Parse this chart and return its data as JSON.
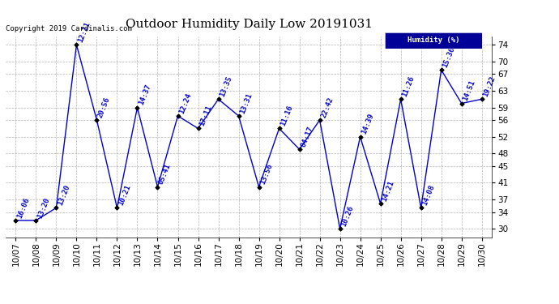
{
  "title": "Outdoor Humidity Daily Low 20191031",
  "dates": [
    "10/07",
    "10/08",
    "10/09",
    "10/10",
    "10/11",
    "10/12",
    "10/13",
    "10/14",
    "10/15",
    "10/16",
    "10/17",
    "10/18",
    "10/19",
    "10/20",
    "10/21",
    "10/22",
    "10/23",
    "10/24",
    "10/25",
    "10/26",
    "10/27",
    "10/28",
    "10/29",
    "10/30"
  ],
  "values": [
    32,
    32,
    35,
    74,
    56,
    35,
    59,
    40,
    57,
    54,
    61,
    57,
    40,
    54,
    49,
    56,
    30,
    52,
    36,
    61,
    35,
    68,
    60,
    61
  ],
  "labels": [
    "16:06",
    "13:20",
    "13:20",
    "12:11",
    "20:56",
    "10:21",
    "14:37",
    "05:41",
    "12:24",
    "17:11",
    "13:35",
    "13:31",
    "13:56",
    "11:16",
    "04:17",
    "22:42",
    "10:26",
    "14:39",
    "14:21",
    "11:26",
    "14:08",
    "15:36",
    "14:51",
    "19:22"
  ],
  "line_color": "#0000CC",
  "marker_color": "#000000",
  "label_color": "#0000CC",
  "bg_color": "#ffffff",
  "grid_color": "#b0b0b0",
  "ylim": [
    28,
    76
  ],
  "yticks": [
    30,
    34,
    37,
    41,
    45,
    48,
    52,
    56,
    59,
    63,
    67,
    70,
    74
  ],
  "legend_label": "Humidity (%)",
  "legend_bg": "#000099",
  "legend_text_color": "#ffffff",
  "copyright_text": "Copyright 2019 Cardinalis.com",
  "title_fontsize": 11,
  "label_fontsize": 6.5,
  "tick_fontsize": 7.5,
  "copyright_fontsize": 6.5
}
